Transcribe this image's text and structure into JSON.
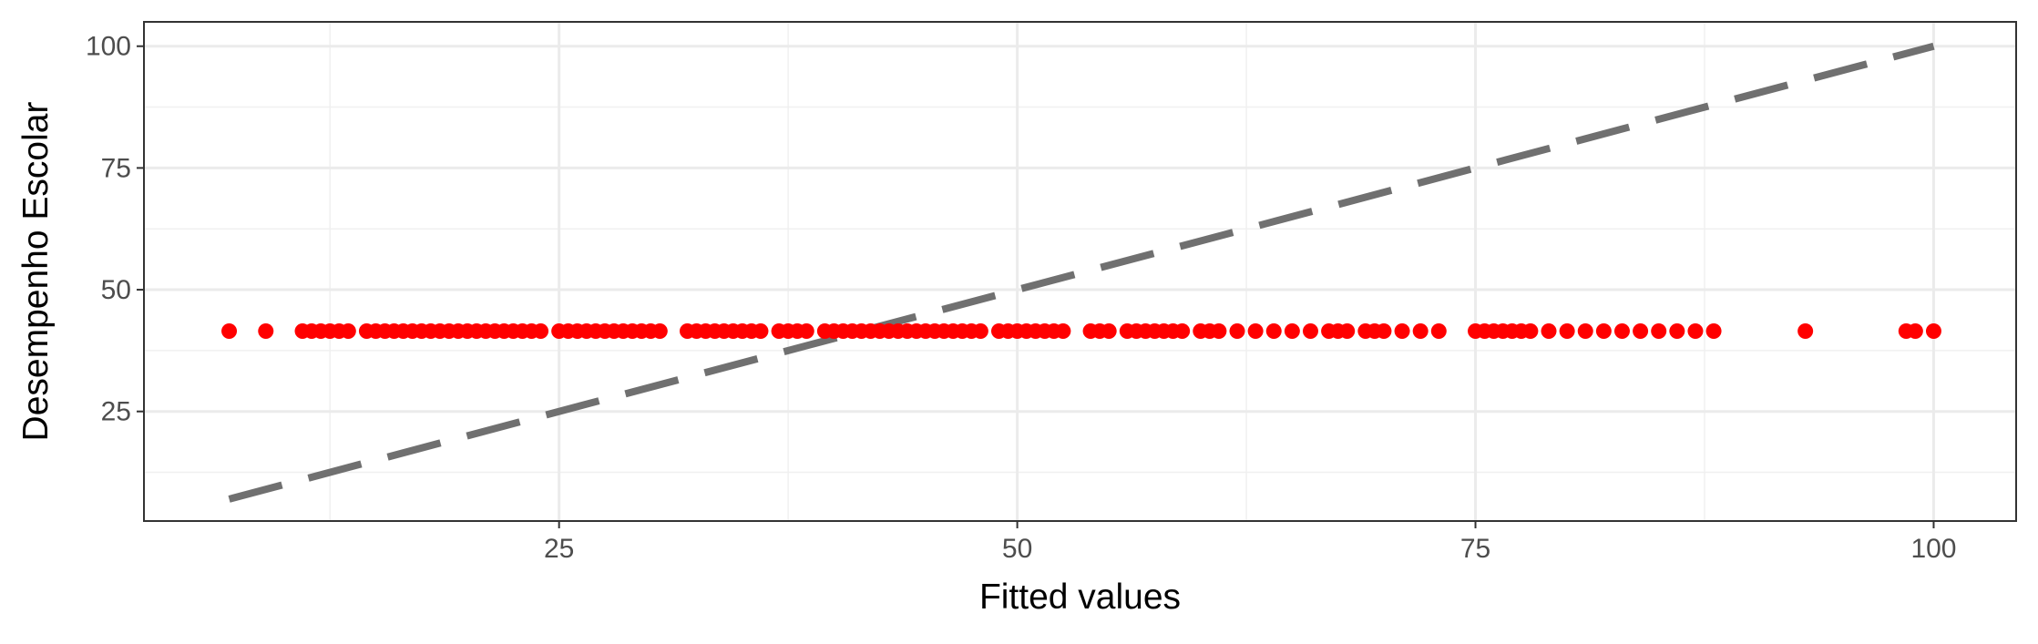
{
  "chart_data": {
    "type": "scatter",
    "title": "",
    "xlabel": "Fitted values",
    "ylabel": "Desempenho Escolar",
    "xlim": [
      2.35,
      104.5
    ],
    "ylim": [
      2.5,
      105
    ],
    "x_ticks": [
      25,
      50,
      75,
      100
    ],
    "y_ticks": [
      25,
      50,
      75,
      100
    ],
    "x_minor": [
      12.5,
      37.5,
      62.5,
      87.5
    ],
    "y_minor": [
      12.5,
      37.5,
      62.5,
      87.5
    ],
    "grid": true,
    "reference_line": {
      "x": [
        7,
        100
      ],
      "y": [
        7,
        100
      ],
      "style": "dashed",
      "color": "#707070"
    },
    "series": [
      {
        "color": "#ff0000",
        "y_constant": 41.5,
        "x": [
          7,
          9,
          11,
          11.5,
          12,
          12.5,
          13,
          13.5,
          14.5,
          15,
          15.5,
          16,
          16.5,
          17,
          17.5,
          18,
          18.5,
          19,
          19.5,
          20,
          20.5,
          21,
          21.5,
          22,
          22.5,
          23,
          23.5,
          24,
          25,
          25.5,
          26,
          26.5,
          27,
          27.5,
          28,
          28.5,
          29,
          29.5,
          30,
          30.5,
          32,
          32.5,
          33,
          33.5,
          34,
          34.5,
          35,
          35.5,
          36,
          37,
          37.5,
          38,
          38.5,
          39.5,
          40,
          40.5,
          41,
          41.5,
          42,
          42.5,
          43,
          43.5,
          44,
          44.5,
          45,
          45.5,
          46,
          46.5,
          47,
          47.5,
          48,
          49,
          49.5,
          50,
          50.5,
          51,
          51.5,
          52,
          52.5,
          54,
          54.5,
          55,
          56,
          56.5,
          57,
          57.5,
          58,
          58.5,
          59,
          60,
          60.5,
          61,
          62,
          63,
          64,
          65,
          66,
          67,
          67.5,
          68,
          69,
          69.5,
          70,
          71,
          72,
          73,
          75,
          75.5,
          76,
          76.5,
          77,
          77.5,
          78,
          79,
          80,
          81,
          82,
          83,
          84,
          85,
          86,
          87,
          88,
          93,
          98.5,
          99,
          100
        ]
      }
    ]
  }
}
